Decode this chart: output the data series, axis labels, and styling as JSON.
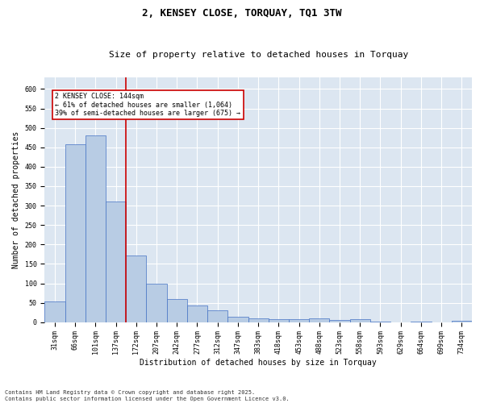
{
  "title": "2, KENSEY CLOSE, TORQUAY, TQ1 3TW",
  "subtitle": "Size of property relative to detached houses in Torquay",
  "xlabel": "Distribution of detached houses by size in Torquay",
  "ylabel": "Number of detached properties",
  "categories": [
    "31sqm",
    "66sqm",
    "101sqm",
    "137sqm",
    "172sqm",
    "207sqm",
    "242sqm",
    "277sqm",
    "312sqm",
    "347sqm",
    "383sqm",
    "418sqm",
    "453sqm",
    "488sqm",
    "523sqm",
    "558sqm",
    "593sqm",
    "629sqm",
    "664sqm",
    "699sqm",
    "734sqm"
  ],
  "values": [
    53,
    457,
    481,
    311,
    172,
    100,
    59,
    44,
    30,
    14,
    9,
    7,
    7,
    9,
    6,
    8,
    2,
    0,
    1,
    0,
    3
  ],
  "bar_color": "#b8cce4",
  "bar_edge_color": "#4472c4",
  "property_line_color": "#cc0000",
  "annotation_text": "2 KENSEY CLOSE: 144sqm\n← 61% of detached houses are smaller (1,064)\n39% of semi-detached houses are larger (675) →",
  "annotation_box_color": "#cc0000",
  "annotation_text_color": "#000000",
  "ylim": [
    0,
    630
  ],
  "yticks": [
    0,
    50,
    100,
    150,
    200,
    250,
    300,
    350,
    400,
    450,
    500,
    550,
    600
  ],
  "plot_background_color": "#dce6f1",
  "footer_line1": "Contains HM Land Registry data © Crown copyright and database right 2025.",
  "footer_line2": "Contains public sector information licensed under the Open Government Licence v3.0.",
  "title_fontsize": 9,
  "subtitle_fontsize": 8,
  "tick_fontsize": 6,
  "label_fontsize": 7,
  "annotation_fontsize": 6,
  "footer_fontsize": 5
}
